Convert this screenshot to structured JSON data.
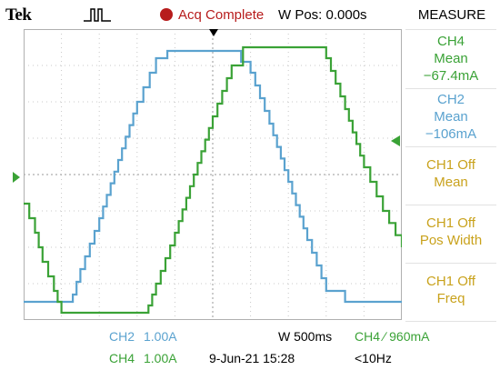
{
  "header": {
    "brand": "Tek",
    "acq_status": "Acq Complete",
    "wpos": "W Pos: 0.000s",
    "menu_title": "MEASURE",
    "status_color": "#b71c1c"
  },
  "measure_panel": [
    {
      "line1": "CH4",
      "line2": "Mean",
      "line3": "−67.4mA",
      "color": "#3aa236"
    },
    {
      "line1": "CH2",
      "line2": "Mean",
      "line3": "−106mA",
      "color": "#5aa2cf"
    },
    {
      "line1": "CH1 Off",
      "line2": "Mean",
      "color": "#c9a21c"
    },
    {
      "line1": "CH1 Off",
      "line2": "Pos Width",
      "color": "#c9a21c"
    },
    {
      "line1": "CH1 Off",
      "line2": "Freq",
      "color": "#c9a21c"
    }
  ],
  "bottom": {
    "ch2_name": "CH2",
    "ch2_scale": "1.00A",
    "ch4_name": "CH4",
    "ch4_scale": "1.00A",
    "timebase": "W 500ms",
    "trigger": "CH4 ∕ 960mA",
    "date": "9-Jun-21 15:28",
    "freq": "<10Hz"
  },
  "chart_data": {
    "type": "line",
    "grid": true,
    "x_divisions": 10,
    "y_divisions": 8,
    "series": [
      {
        "name": "CH2",
        "color": "#5aa2cf",
        "x": [
          0,
          0.5,
          1.0,
          1.3,
          1.5,
          2.0,
          2.5,
          3.0,
          3.5,
          3.8,
          4.0,
          4.5,
          5.0,
          5.5,
          6.0,
          6.5,
          7.0,
          7.5,
          8.0,
          8.5,
          9.0,
          9.5,
          10
        ],
        "y": [
          -3.5,
          -3.5,
          -3.5,
          -3.3,
          -2.6,
          -1.2,
          0.4,
          2.0,
          3.2,
          3.4,
          3.4,
          3.4,
          3.4,
          3.4,
          2.8,
          1.4,
          -0.2,
          -1.8,
          -3.2,
          -3.5,
          -3.5,
          -3.5,
          -3.5
        ]
      },
      {
        "name": "CH4",
        "color": "#3aa236",
        "x": [
          0,
          0.3,
          0.5,
          0.8,
          1.0,
          1.3,
          1.5,
          2.0,
          2.5,
          3.0,
          3.3,
          3.5,
          4.0,
          4.5,
          5.0,
          5.5,
          5.8,
          6.0,
          6.5,
          7.0,
          7.5,
          8.0,
          8.5,
          9.0,
          9.5,
          10
        ],
        "y": [
          -0.8,
          -1.6,
          -2.4,
          -3.2,
          -3.8,
          -3.8,
          -3.8,
          -3.8,
          -3.8,
          -3.8,
          -3.6,
          -3.0,
          -1.6,
          0.0,
          1.6,
          3.0,
          3.5,
          3.5,
          3.5,
          3.5,
          3.5,
          3.2,
          1.8,
          0.2,
          -1.0,
          -2.0
        ]
      }
    ]
  }
}
